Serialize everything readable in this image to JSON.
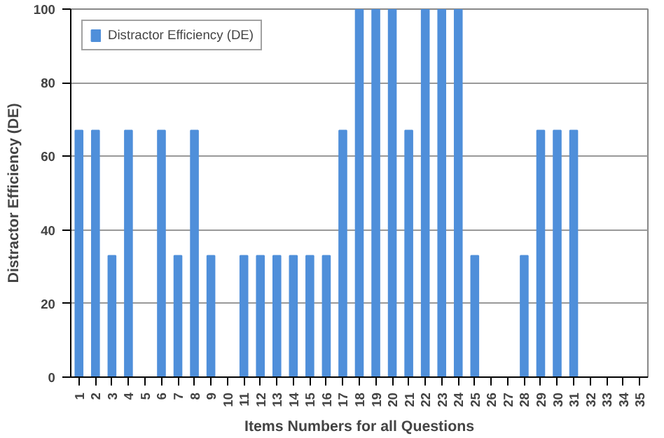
{
  "chart_data": {
    "type": "bar",
    "xlabel": "Items Numbers for all Questions",
    "ylabel": "Distractor Efficiency (DE)",
    "categories": [
      "1",
      "2",
      "3",
      "4",
      "5",
      "6",
      "7",
      "8",
      "9",
      "10",
      "11",
      "12",
      "13",
      "14",
      "15",
      "16",
      "17",
      "18",
      "19",
      "20",
      "21",
      "22",
      "23",
      "24",
      "25",
      "26",
      "27",
      "28",
      "29",
      "30",
      "31",
      "32",
      "33",
      "34",
      "35"
    ],
    "series": [
      {
        "name": "Distractor Efficiency (DE)",
        "color": "#4f8fda",
        "values": [
          67,
          67,
          33,
          67,
          0,
          67,
          33,
          67,
          33,
          0,
          33,
          33,
          33,
          33,
          33,
          33,
          67,
          100,
          100,
          100,
          67,
          100,
          100,
          100,
          33,
          0,
          0,
          33,
          67,
          67,
          67,
          0,
          0,
          0,
          0
        ]
      }
    ],
    "ylim": [
      0,
      100
    ],
    "yticks": [
      0,
      20,
      40,
      60,
      80,
      100
    ],
    "grid": "y",
    "legend": "top left"
  }
}
